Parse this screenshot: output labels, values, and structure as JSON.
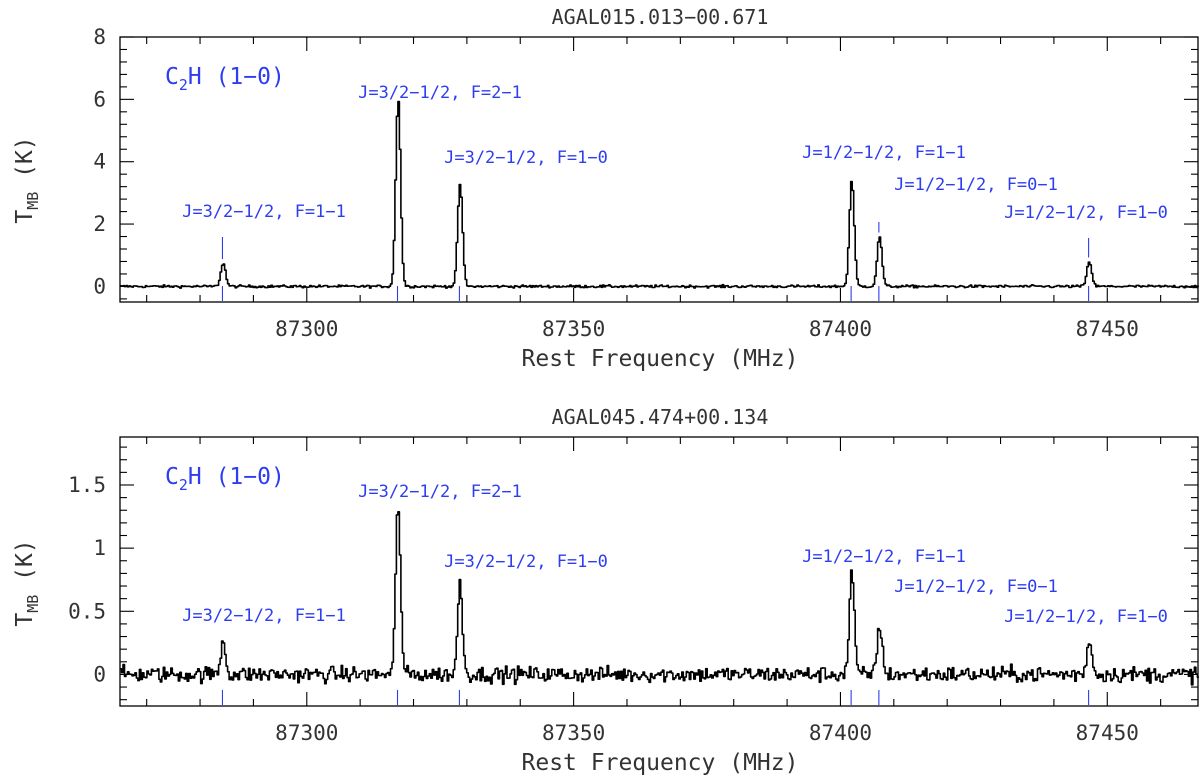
{
  "chart_data": [
    {
      "type": "line",
      "title": "AGAL015.013−00.671",
      "species": {
        "base": "C",
        "sub": "2",
        "rest": "H (1−0)"
      },
      "xlabel": "Rest Frequency (MHz)",
      "ylabel": {
        "main": "T",
        "sub": "MB",
        "unit": " (K)"
      },
      "xlim": [
        87265,
        87467
      ],
      "ylim": [
        -0.5,
        8.0
      ],
      "xticks": [
        87300,
        87350,
        87400,
        87450
      ],
      "xtick_labels": [
        "87300",
        "87350",
        "87400",
        "87450"
      ],
      "yticks": [
        0,
        2,
        4,
        6,
        8
      ],
      "ytick_labels": [
        "0",
        "2",
        "4",
        "6",
        "8"
      ],
      "noise_rms": 0.03,
      "lines": [
        {
          "label": "J=3/2−1/2, F=1−1",
          "freq": 87284.2,
          "peak": 0.75
        },
        {
          "label": "J=3/2−1/2, F=2−1",
          "freq": 87317.0,
          "peak": 6.05
        },
        {
          "label": "J=3/2−1/2, F=1−0",
          "freq": 87328.6,
          "peak": 3.3
        },
        {
          "label": "J=1/2−1/2, F=1−1",
          "freq": 87402.0,
          "peak": 3.4
        },
        {
          "label": "J=1/2−1/2, F=0−1",
          "freq": 87407.2,
          "peak": 1.6
        },
        {
          "label": "J=1/2−1/2, F=1−0",
          "freq": 87446.5,
          "peak": 0.8
        }
      ]
    },
    {
      "type": "line",
      "title": "AGAL045.474+00.134",
      "species": {
        "base": "C",
        "sub": "2",
        "rest": "H (1−0)"
      },
      "xlabel": "Rest Frequency (MHz)",
      "ylabel": {
        "main": "T",
        "sub": "MB",
        "unit": " (K)"
      },
      "xlim": [
        87265,
        87467
      ],
      "ylim": [
        -0.25,
        1.88
      ],
      "xticks": [
        87300,
        87350,
        87400,
        87450
      ],
      "xtick_labels": [
        "87300",
        "87350",
        "87400",
        "87450"
      ],
      "yticks": [
        0,
        0.5,
        1,
        1.5
      ],
      "ytick_labels": [
        "0",
        "0.5",
        "1",
        "1.5"
      ],
      "noise_rms": 0.045,
      "lines": [
        {
          "label": "J=3/2−1/2, F=1−1",
          "freq": 87284.2,
          "peak": 0.27
        },
        {
          "label": "J=3/2−1/2, F=2−1",
          "freq": 87317.0,
          "peak": 1.35
        },
        {
          "label": "J=3/2−1/2, F=1−0",
          "freq": 87328.6,
          "peak": 0.72
        },
        {
          "label": "J=1/2−1/2, F=1−1",
          "freq": 87402.0,
          "peak": 0.82
        },
        {
          "label": "J=1/2−1/2, F=0−1",
          "freq": 87407.2,
          "peak": 0.4
        },
        {
          "label": "J=1/2−1/2, F=1−0",
          "freq": 87446.5,
          "peak": 0.28
        }
      ]
    }
  ]
}
